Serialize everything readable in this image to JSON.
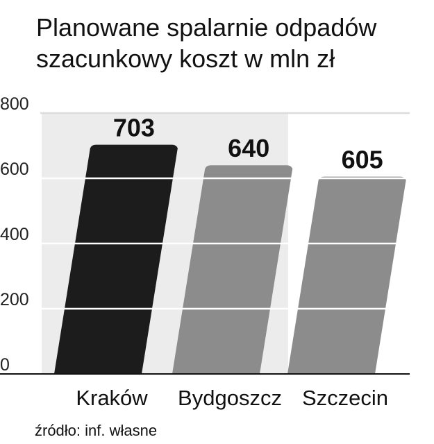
{
  "chart_data": {
    "type": "bar",
    "title": "Planowane spalarnie odpadów",
    "subtitle": "szacunkowy koszt w mln zł",
    "categories": [
      "Kraków",
      "Bydgoszcz",
      "Szczecin"
    ],
    "values": [
      703,
      640,
      605
    ],
    "colors": [
      "#1c1c1c",
      "#8c8c8c",
      "#8c8c8c"
    ],
    "ylim": [
      0,
      800
    ],
    "yticks": [
      0,
      200,
      400,
      600,
      800
    ],
    "grid": true,
    "source": "źródło: inf. własne"
  }
}
